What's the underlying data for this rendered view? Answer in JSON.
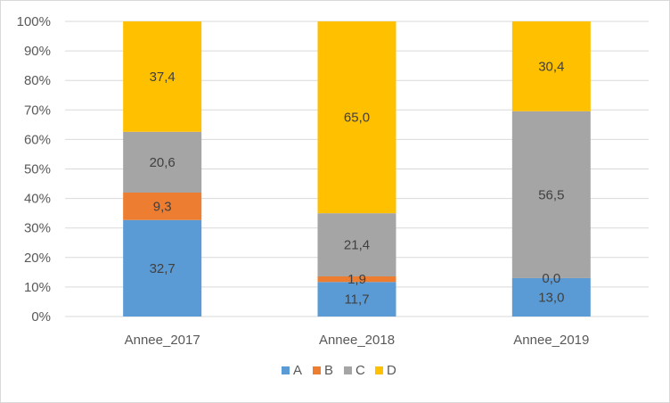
{
  "chart_data": {
    "type": "bar",
    "stacked": "percent",
    "categories": [
      "Annee_2017",
      "Annee_2018",
      "Annee_2019"
    ],
    "series": [
      {
        "name": "A",
        "color": "#5b9bd5",
        "values": [
          32.7,
          11.7,
          13.0
        ],
        "labels": [
          "32,7",
          "11,7",
          "13,0"
        ]
      },
      {
        "name": "B",
        "color": "#ed7d31",
        "values": [
          9.3,
          1.9,
          0.0
        ],
        "labels": [
          "9,3",
          "1,9",
          "0,0"
        ]
      },
      {
        "name": "C",
        "color": "#a5a5a5",
        "values": [
          20.6,
          21.4,
          56.5
        ],
        "labels": [
          "20,6",
          "21,4",
          "56,5"
        ]
      },
      {
        "name": "D",
        "color": "#ffc000",
        "values": [
          37.4,
          65.0,
          30.4
        ],
        "labels": [
          "37,4",
          "65,0",
          "30,4"
        ]
      }
    ],
    "y_ticks": [
      "0%",
      "10%",
      "20%",
      "30%",
      "40%",
      "50%",
      "60%",
      "70%",
      "80%",
      "90%",
      "100%"
    ],
    "ylim": [
      0,
      100
    ],
    "legend_position": "bottom",
    "title": "",
    "xlabel": "",
    "ylabel": ""
  }
}
